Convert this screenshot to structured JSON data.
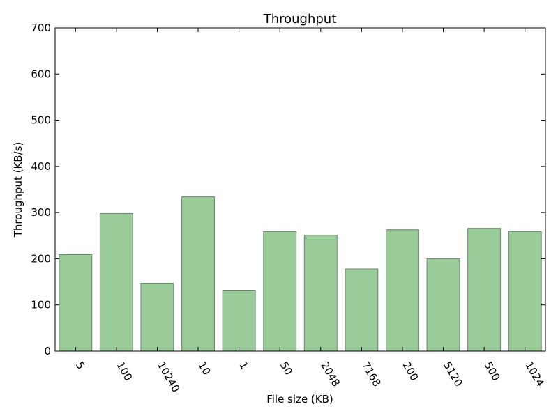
{
  "chart_data": {
    "type": "bar",
    "title": "Throughput",
    "xlabel": "File size (KB)",
    "ylabel": "Throughput (KB/s)",
    "categories": [
      "5",
      "100",
      "10240",
      "10",
      "1",
      "50",
      "2048",
      "7168",
      "200",
      "5120",
      "500",
      "1024"
    ],
    "values": [
      209,
      298,
      147,
      334,
      132,
      259,
      251,
      178,
      263,
      200,
      266,
      259
    ],
    "ylim": [
      0,
      700
    ],
    "yticks": [
      0,
      100,
      200,
      300,
      400,
      500,
      600,
      700
    ],
    "grid": false,
    "legend": "none",
    "colors": {
      "bar_fill": "#99cc99",
      "bar_stroke": "#6f816f",
      "axis": "#000000",
      "text": "#000000"
    }
  }
}
